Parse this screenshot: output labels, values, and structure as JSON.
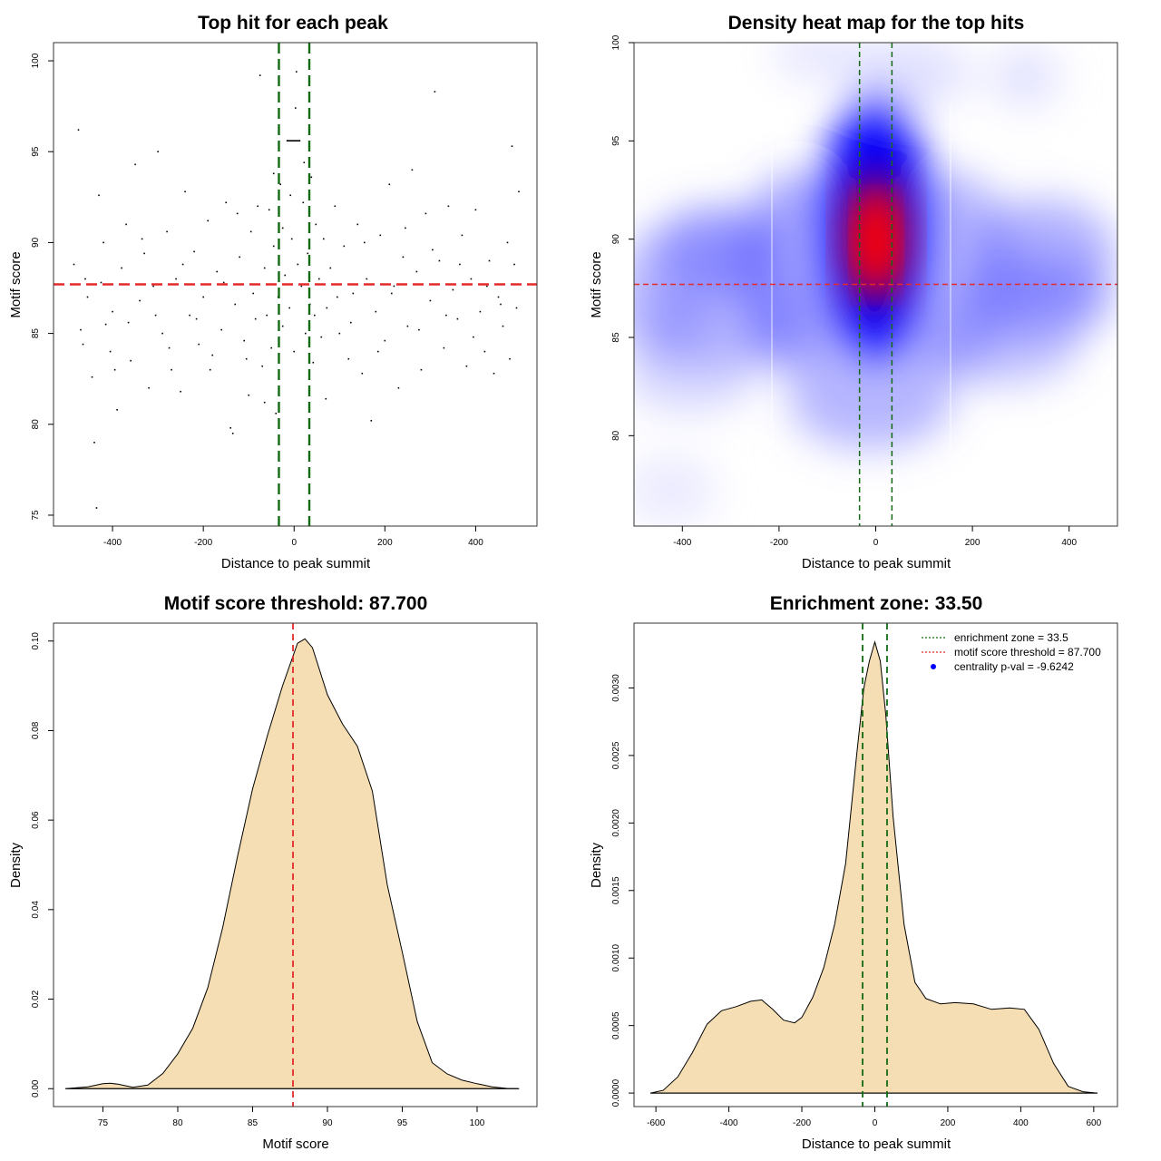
{
  "chart_data": [
    {
      "type": "scatter",
      "title": "Top hit for each peak",
      "xlabel": "Distance to peak summit",
      "ylabel": "Motif score",
      "xlim": [
        -530,
        535
      ],
      "ylim": [
        74.4,
        101
      ],
      "x_ticks": [
        -400,
        -200,
        0,
        200,
        400
      ],
      "y_ticks": [
        75,
        80,
        85,
        90,
        95,
        100
      ],
      "x_tick_labels": [
        "-400",
        "-200",
        "0",
        "200",
        "400"
      ],
      "y_tick_labels": [
        "75",
        "80",
        "85",
        "90",
        "95",
        "100"
      ],
      "hlines": [
        {
          "y": 87.7,
          "color": "#e32b2b",
          "dash": "dashed"
        }
      ],
      "vlines": [
        {
          "x": -33.5,
          "color": "#126b12",
          "dash": "dashed"
        },
        {
          "x": 33.5,
          "color": "#126b12",
          "dash": "dashed"
        }
      ],
      "points": [
        [
          -475,
          96.2
        ],
        [
          -460,
          88.0
        ],
        [
          -470,
          85.2
        ],
        [
          -455,
          87.0
        ],
        [
          -445,
          82.6
        ],
        [
          -440,
          79.0
        ],
        [
          -435,
          75.4
        ],
        [
          -430,
          92.6
        ],
        [
          -420,
          90.0
        ],
        [
          -415,
          85.5
        ],
        [
          -405,
          84.0
        ],
        [
          -400,
          86.2
        ],
        [
          -390,
          80.8
        ],
        [
          -380,
          88.6
        ],
        [
          -370,
          91.0
        ],
        [
          -360,
          83.5
        ],
        [
          -350,
          94.3
        ],
        [
          -340,
          86.8
        ],
        [
          -330,
          89.4
        ],
        [
          -320,
          82.0
        ],
        [
          -310,
          87.6
        ],
        [
          -300,
          95.0
        ],
        [
          -290,
          85.0
        ],
        [
          -280,
          90.6
        ],
        [
          -270,
          83.0
        ],
        [
          -260,
          88.0
        ],
        [
          -250,
          81.8
        ],
        [
          -240,
          92.8
        ],
        [
          -230,
          86.0
        ],
        [
          -220,
          89.5
        ],
        [
          -210,
          84.4
        ],
        [
          -200,
          87.0
        ],
        [
          -190,
          91.2
        ],
        [
          -180,
          83.8
        ],
        [
          -170,
          88.4
        ],
        [
          -160,
          85.2
        ],
        [
          -150,
          92.2
        ],
        [
          -140,
          79.8
        ],
        [
          -135,
          79.5
        ],
        [
          -130,
          86.6
        ],
        [
          -120,
          89.2
        ],
        [
          -110,
          84.6
        ],
        [
          -100,
          81.6
        ],
        [
          -95,
          90.6
        ],
        [
          -90,
          87.2
        ],
        [
          -85,
          85.8
        ],
        [
          -80,
          92.0
        ],
        [
          -75,
          99.2
        ],
        [
          -70,
          83.2
        ],
        [
          -65,
          88.6
        ],
        [
          -60,
          86.0
        ],
        [
          -55,
          91.8
        ],
        [
          -50,
          84.2
        ],
        [
          -45,
          89.8
        ],
        [
          -40,
          80.6
        ],
        [
          -35,
          87.0
        ],
        [
          -30,
          93.2
        ],
        [
          -25,
          85.4
        ],
        [
          -20,
          88.2
        ],
        [
          -15,
          95.6
        ],
        [
          -10,
          86.4
        ],
        [
          -5,
          90.2
        ],
        [
          0,
          84.0
        ],
        [
          3,
          97.4
        ],
        [
          8,
          88.8
        ],
        [
          12,
          95.6
        ],
        [
          16,
          87.6
        ],
        [
          20,
          92.2
        ],
        [
          25,
          85.0
        ],
        [
          30,
          89.4
        ],
        [
          35,
          86.6
        ],
        [
          38,
          93.6
        ],
        [
          42,
          83.4
        ],
        [
          48,
          91.0
        ],
        [
          55,
          88.0
        ],
        [
          60,
          84.8
        ],
        [
          65,
          90.2
        ],
        [
          72,
          86.4
        ],
        [
          80,
          88.6
        ],
        [
          90,
          92.0
        ],
        [
          100,
          85.0
        ],
        [
          110,
          89.8
        ],
        [
          120,
          83.6
        ],
        [
          130,
          87.2
        ],
        [
          140,
          91.0
        ],
        [
          150,
          82.8
        ],
        [
          160,
          88.0
        ],
        [
          170,
          80.2
        ],
        [
          180,
          86.2
        ],
        [
          190,
          90.4
        ],
        [
          200,
          84.6
        ],
        [
          210,
          93.2
        ],
        [
          220,
          87.6
        ],
        [
          230,
          82.0
        ],
        [
          240,
          89.2
        ],
        [
          250,
          85.4
        ],
        [
          260,
          94.0
        ],
        [
          270,
          88.4
        ],
        [
          280,
          83.0
        ],
        [
          290,
          91.6
        ],
        [
          300,
          86.8
        ],
        [
          310,
          98.3
        ],
        [
          320,
          89.0
        ],
        [
          330,
          84.2
        ],
        [
          340,
          92.0
        ],
        [
          350,
          87.4
        ],
        [
          360,
          85.8
        ],
        [
          370,
          90.4
        ],
        [
          380,
          83.2
        ],
        [
          390,
          88.0
        ],
        [
          400,
          91.8
        ],
        [
          410,
          86.2
        ],
        [
          420,
          84.0
        ],
        [
          430,
          89.0
        ],
        [
          440,
          82.8
        ],
        [
          450,
          87.0
        ],
        [
          460,
          85.4
        ],
        [
          470,
          90.0
        ],
        [
          480,
          95.3
        ],
        [
          485,
          88.8
        ],
        [
          490,
          86.4
        ],
        [
          495,
          92.8
        ],
        [
          -485,
          88.8
        ],
        [
          -465,
          84.4
        ],
        [
          -425,
          87.8
        ],
        [
          -395,
          83.0
        ],
        [
          -365,
          85.6
        ],
        [
          -335,
          90.2
        ],
        [
          -305,
          86.0
        ],
        [
          -275,
          84.2
        ],
        [
          -245,
          88.8
        ],
        [
          -215,
          85.8
        ],
        [
          -185,
          83.0
        ],
        [
          -155,
          87.8
        ],
        [
          -125,
          91.6
        ],
        [
          -105,
          83.6
        ],
        [
          -65,
          81.2
        ],
        [
          -45,
          93.8
        ],
        [
          -25,
          90.8
        ],
        [
          -8,
          92.6
        ],
        [
          5,
          99.4
        ],
        [
          22,
          94.4
        ],
        [
          45,
          86.0
        ],
        [
          70,
          81.4
        ],
        [
          95,
          87.0
        ],
        [
          125,
          85.6
        ],
        [
          155,
          90.0
        ],
        [
          185,
          84.0
        ],
        [
          215,
          87.2
        ],
        [
          245,
          90.8
        ],
        [
          275,
          85.2
        ],
        [
          305,
          89.6
        ],
        [
          335,
          86.0
        ],
        [
          365,
          88.8
        ],
        [
          395,
          84.8
        ],
        [
          425,
          87.6
        ],
        [
          455,
          86.6
        ],
        [
          475,
          83.6
        ]
      ]
    },
    {
      "type": "heatmap",
      "title": "Density heat map for the top hits",
      "xlabel": "Distance to peak summit",
      "ylabel": "Motif score",
      "xlim": [
        -500,
        500
      ],
      "ylim": [
        75.4,
        100
      ],
      "x_ticks": [
        -400,
        -200,
        0,
        200,
        400
      ],
      "y_ticks": [
        80,
        85,
        90,
        95,
        100
      ],
      "x_tick_labels": [
        "-400",
        "-200",
        "0",
        "200",
        "400"
      ],
      "y_tick_labels": [
        "80",
        "85",
        "90",
        "95",
        "100"
      ],
      "color_low": "#ffffff",
      "color_mid": "#0000ff",
      "color_high": "#ff0000",
      "hlines": [
        {
          "y": 87.7,
          "color": "#e32b2b",
          "dash": "dashed"
        }
      ],
      "vlines": [
        {
          "x": -33.5,
          "color": "#126b12",
          "dash": "dashed"
        },
        {
          "x": 33.5,
          "color": "#126b12",
          "dash": "dashed"
        }
      ]
    },
    {
      "type": "area",
      "title": "Motif score threshold: 87.700",
      "xlabel": "Motif score",
      "ylabel": "Density",
      "xlim": [
        71.7,
        104
      ],
      "ylim": [
        -0.004,
        0.104
      ],
      "fill": "#f5deb3",
      "x_ticks": [
        75,
        80,
        85,
        90,
        95,
        100
      ],
      "y_ticks": [
        0,
        0.02,
        0.04,
        0.06,
        0.08,
        0.1
      ],
      "x_tick_labels": [
        "75",
        "80",
        "85",
        "90",
        "95",
        "100"
      ],
      "y_tick_labels": [
        "0.00",
        "0.02",
        "0.04",
        "0.06",
        "0.08",
        "0.10"
      ],
      "vlines": [
        {
          "x": 87.7,
          "color": "#e32b2b",
          "dash": "dashed"
        }
      ],
      "x": [
        72.5,
        74,
        75,
        75.5,
        76,
        77,
        78,
        79,
        80,
        81,
        82,
        83,
        84,
        85,
        86,
        87,
        88,
        88.5,
        89,
        90,
        91,
        92,
        93,
        94,
        95,
        96,
        97,
        98,
        99,
        100,
        101,
        102,
        102.8
      ],
      "y": [
        0,
        0.0004,
        0.0011,
        0.0012,
        0.001,
        0.0003,
        0.0008,
        0.0034,
        0.0078,
        0.0135,
        0.0225,
        0.036,
        0.052,
        0.067,
        0.079,
        0.09,
        0.0995,
        0.1005,
        0.0985,
        0.088,
        0.0815,
        0.0765,
        0.0665,
        0.0455,
        0.0305,
        0.015,
        0.0058,
        0.0033,
        0.0019,
        0.0011,
        0.0004,
        5e-05,
        0
      ]
    },
    {
      "type": "area",
      "title": "Enrichment zone: 33.50",
      "xlabel": "Distance to peak summit",
      "ylabel": "Density",
      "xlim": [
        -660,
        665
      ],
      "ylim": [
        -0.0001,
        0.00348
      ],
      "fill": "#f5deb3",
      "x_ticks": [
        -600,
        -400,
        -200,
        0,
        200,
        400,
        600
      ],
      "y_ticks": [
        0,
        0.0005,
        0.001,
        0.0015,
        0.002,
        0.0025,
        0.003
      ],
      "x_tick_labels": [
        "-600",
        "-400",
        "-200",
        "0",
        "200",
        "400",
        "600"
      ],
      "y_tick_labels": [
        "0.0000",
        "0.0005",
        "0.0010",
        "0.0015",
        "0.0020",
        "0.0025",
        "0.0030"
      ],
      "vlines": [
        {
          "x": -33.5,
          "color": "#126b12",
          "dash": "dashed"
        },
        {
          "x": 33.5,
          "color": "#126b12",
          "dash": "dashed"
        }
      ],
      "x": [
        -615,
        -580,
        -540,
        -500,
        -460,
        -420,
        -380,
        -340,
        -310,
        -280,
        -250,
        -220,
        -200,
        -170,
        -140,
        -110,
        -80,
        -50,
        -30,
        -15,
        0,
        15,
        30,
        50,
        80,
        110,
        140,
        180,
        220,
        270,
        320,
        370,
        410,
        450,
        490,
        530,
        570,
        610
      ],
      "y": [
        0,
        2e-05,
        0.00012,
        0.0003,
        0.00051,
        0.00061,
        0.00064,
        0.00068,
        0.00069,
        0.00062,
        0.00054,
        0.00052,
        0.00056,
        0.00071,
        0.00093,
        0.00125,
        0.0017,
        0.0025,
        0.003,
        0.0032,
        0.00334,
        0.0032,
        0.0028,
        0.00205,
        0.00125,
        0.00082,
        0.0007,
        0.00066,
        0.00067,
        0.00066,
        0.00062,
        0.00063,
        0.00062,
        0.00047,
        0.00022,
        5e-05,
        1e-05,
        0
      ]
    }
  ],
  "legend": {
    "position": "top-right",
    "items": [
      {
        "label": "enrichment zone = 33.5",
        "color": "#126b12",
        "symbol": "line"
      },
      {
        "label": "motif score threshold = 87.700",
        "color": "#e32b2b",
        "symbol": "line"
      },
      {
        "label": "centrality p-val = -9.6242",
        "color": "#0000ff",
        "symbol": "point"
      }
    ]
  }
}
